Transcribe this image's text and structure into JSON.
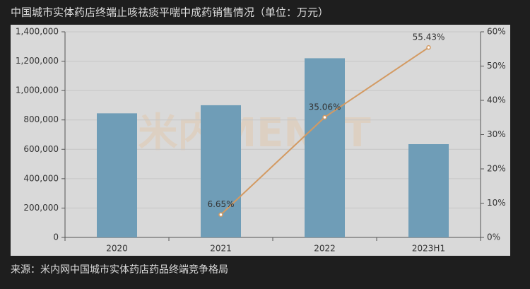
{
  "chart_data": {
    "type": "bar",
    "title": "中国城市实体药店终端止咳祛痰平喘中成药销售情况（单位：万元）",
    "watermark": "米内MENET",
    "source": "来源：米内网中国城市实体药店药品终端竞争格局",
    "categories": [
      "2020",
      "2021",
      "2022",
      "2023H1"
    ],
    "series": [
      {
        "type": "bar",
        "color": "#6f9db7",
        "values": [
          845000,
          900000,
          1220000,
          635000
        ]
      },
      {
        "type": "line",
        "axis": "y2",
        "color": "#d39a62",
        "values": [
          null,
          6.65,
          35.06,
          55.43
        ],
        "value_labels": [
          null,
          "6.65%",
          "35.06%",
          "55.43%"
        ]
      }
    ],
    "ylim": [
      0,
      1400000
    ],
    "yticks": [
      0,
      {
        "value": 200000,
        "label": "200,000"
      },
      {
        "value": 400000,
        "label": "400,000"
      },
      {
        "value": 600000,
        "label": "600,000"
      },
      {
        "value": 800000,
        "label": "800,000"
      },
      {
        "value": 1000000,
        "label": "1,000,000"
      },
      {
        "value": 1200000,
        "label": "1,200,000"
      },
      {
        "value": 1400000,
        "label": "1,400,000"
      }
    ],
    "y2lim": [
      0,
      60
    ],
    "y2ticks": [
      {
        "value": 0,
        "label": "0%"
      },
      {
        "value": 10,
        "label": "10%"
      },
      {
        "value": 20,
        "label": "20%"
      },
      {
        "value": 30,
        "label": "30%"
      },
      {
        "value": 40,
        "label": "40%"
      },
      {
        "value": 50,
        "label": "50%"
      },
      {
        "value": 60,
        "label": "60%"
      }
    ],
    "grid": true
  }
}
